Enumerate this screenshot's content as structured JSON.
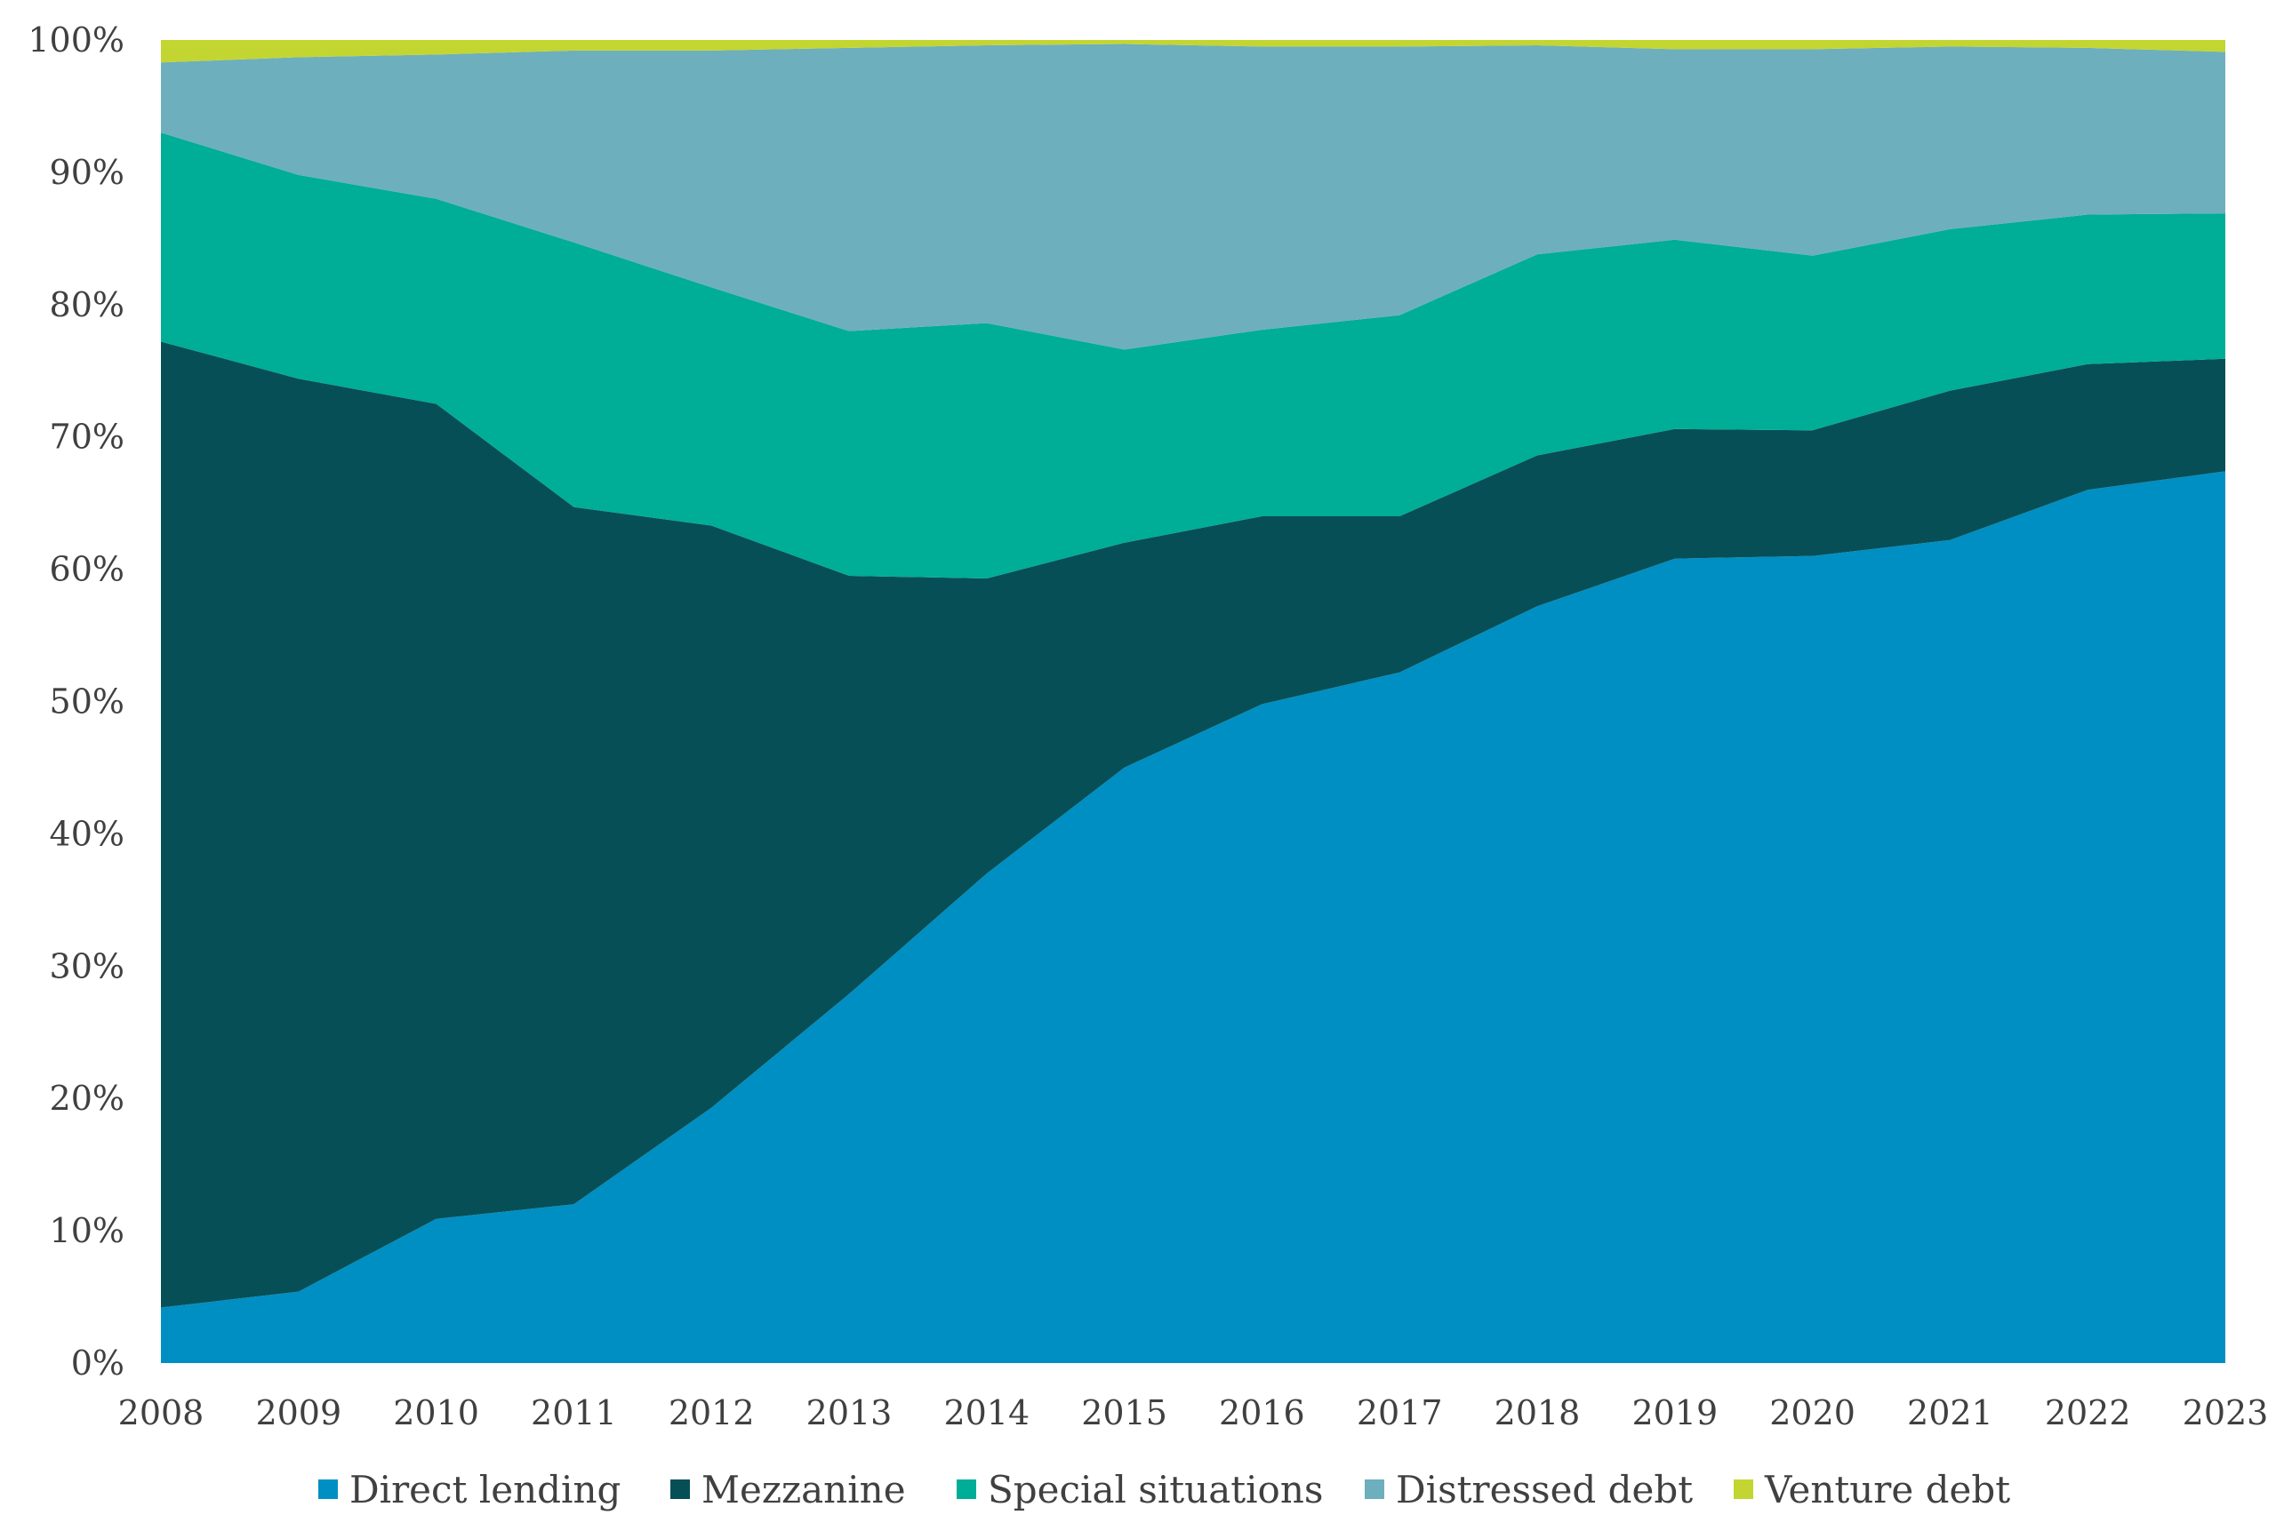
{
  "chart_data": {
    "type": "area",
    "stacked": true,
    "percent": true,
    "title": "",
    "xlabel": "",
    "ylabel": "",
    "ylim": [
      0,
      100
    ],
    "y_ticks": [
      "0%",
      "10%",
      "20%",
      "30%",
      "40%",
      "50%",
      "60%",
      "70%",
      "80%",
      "90%",
      "100%"
    ],
    "x": [
      "2008",
      "2009",
      "2010",
      "2011",
      "2012",
      "2013",
      "2014",
      "2015",
      "2016",
      "2017",
      "2018",
      "2019",
      "2020",
      "2021",
      "2022",
      "2023"
    ],
    "grid": false,
    "legend_position": "bottom",
    "series": [
      {
        "name": "Direct lending",
        "color": "#008fc2",
        "values": [
          4.2,
          5.4,
          10.9,
          12.0,
          19.3,
          27.9,
          37.0,
          45.0,
          49.8,
          52.2,
          57.2,
          60.8,
          61.0,
          62.2,
          66.0,
          67.4
        ]
      },
      {
        "name": "Mezzanine",
        "color": "#064f57",
        "values": [
          73.0,
          69.0,
          61.6,
          52.7,
          44.0,
          31.6,
          22.3,
          17.0,
          14.2,
          11.8,
          11.4,
          9.8,
          9.5,
          11.3,
          9.5,
          8.5
        ]
      },
      {
        "name": "Special situations",
        "color": "#00ad97",
        "values": [
          15.8,
          15.4,
          15.5,
          20.0,
          18.0,
          18.5,
          19.3,
          14.6,
          14.1,
          15.2,
          15.2,
          14.3,
          13.2,
          12.2,
          11.3,
          11.0
        ]
      },
      {
        "name": "Distressed debt",
        "color": "#6eafbd",
        "values": [
          5.3,
          8.9,
          10.9,
          14.5,
          17.9,
          21.4,
          21.0,
          23.1,
          21.4,
          20.3,
          15.8,
          14.4,
          15.6,
          13.8,
          12.6,
          12.2
        ]
      },
      {
        "name": "Venture debt",
        "color": "#c3d530",
        "values": [
          1.7,
          1.3,
          1.1,
          0.8,
          0.8,
          0.6,
          0.4,
          0.3,
          0.5,
          0.5,
          0.4,
          0.7,
          0.7,
          0.5,
          0.6,
          0.9
        ]
      }
    ]
  }
}
